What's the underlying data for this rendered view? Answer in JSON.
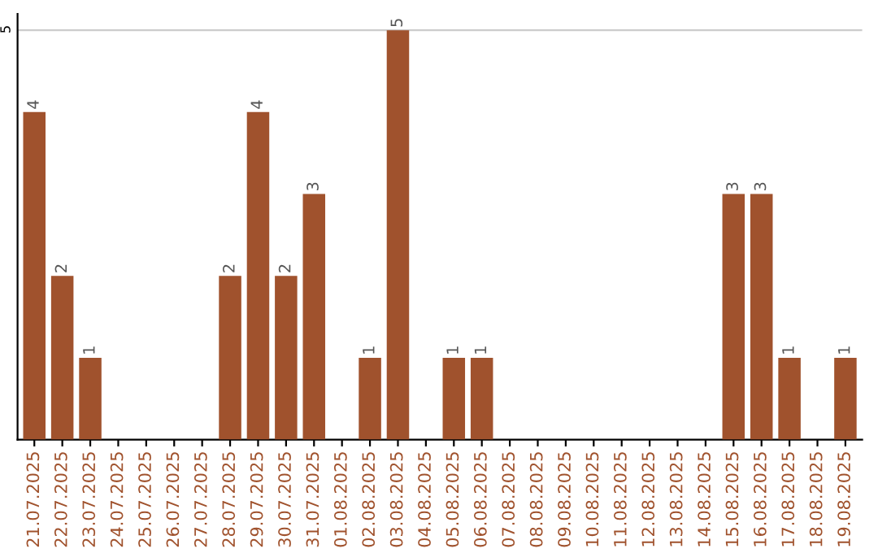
{
  "chart_data": {
    "type": "bar",
    "categories": [
      "21.07.2025",
      "22.07.2025",
      "23.07.2025",
      "24.07.2025",
      "25.07.2025",
      "26.07.2025",
      "27.07.2025",
      "28.07.2025",
      "29.07.2025",
      "30.07.2025",
      "31.07.2025",
      "01.08.2025",
      "02.08.2025",
      "03.08.2025",
      "04.08.2025",
      "05.08.2025",
      "06.08.2025",
      "07.08.2025",
      "08.08.2025",
      "09.08.2025",
      "10.08.2025",
      "11.08.2025",
      "12.08.2025",
      "13.08.2025",
      "14.08.2025",
      "15.08.2025",
      "16.08.2025",
      "17.08.2025",
      "18.08.2025",
      "19.08.2025"
    ],
    "values": [
      4,
      2,
      1,
      0,
      0,
      0,
      0,
      2,
      4,
      2,
      3,
      0,
      1,
      5,
      0,
      1,
      1,
      0,
      0,
      0,
      0,
      0,
      0,
      0,
      0,
      3,
      3,
      1,
      0,
      1
    ],
    "value_labels": [
      "4",
      "2",
      "1",
      null,
      null,
      null,
      null,
      "2",
      "4",
      "2",
      "3",
      null,
      "1",
      "5",
      null,
      "1",
      "1",
      null,
      null,
      null,
      null,
      null,
      null,
      null,
      null,
      "3",
      "3",
      "1",
      null,
      "1"
    ],
    "color": "#a0522d",
    "ylim": [
      0,
      5.2
    ],
    "yticks": [
      5
    ],
    "grid": "y"
  }
}
